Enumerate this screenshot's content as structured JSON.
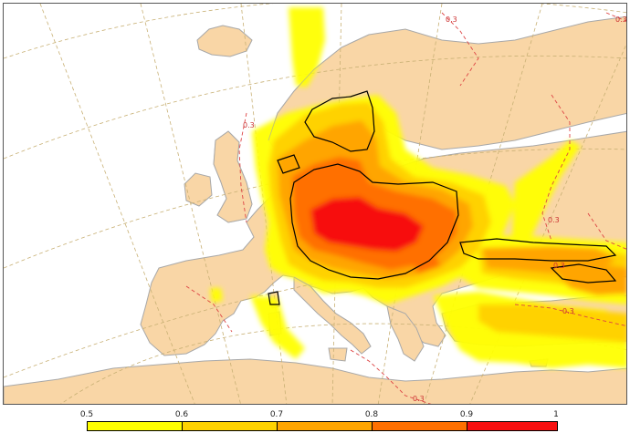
{
  "map": {
    "contour_labels": [
      "0.3",
      "0.3",
      "0.3",
      "0.3",
      "0.3",
      "0.3",
      "0.3"
    ],
    "colors": {
      "ocean": "#ffffff",
      "land": "#f9d6a6",
      "coastline": "#a8a8a8",
      "graticule": "#c8b074",
      "dashed_contour": "#dd4444",
      "solid_contour": "#000000"
    }
  },
  "colorbar": {
    "ticks": [
      "0.5",
      "0.6",
      "0.7",
      "0.8",
      "0.9",
      "1"
    ],
    "colors": [
      "#ffff00",
      "#ffd200",
      "#ffa500",
      "#ff7000",
      "#f71010"
    ]
  }
}
